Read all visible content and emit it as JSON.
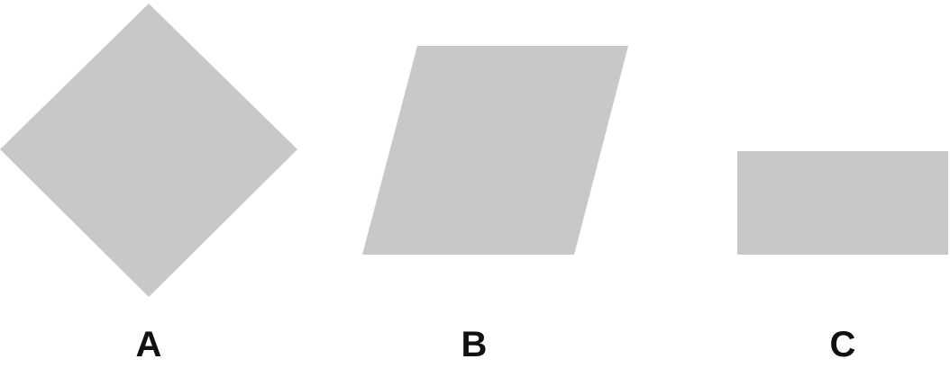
{
  "figure": {
    "shape_fill": "#c8c8c8",
    "label_color": "#111111",
    "shapes": [
      {
        "id": "square",
        "label": "A"
      },
      {
        "id": "parallelogram",
        "label": "B"
      },
      {
        "id": "rectangle",
        "label": "C"
      }
    ]
  }
}
